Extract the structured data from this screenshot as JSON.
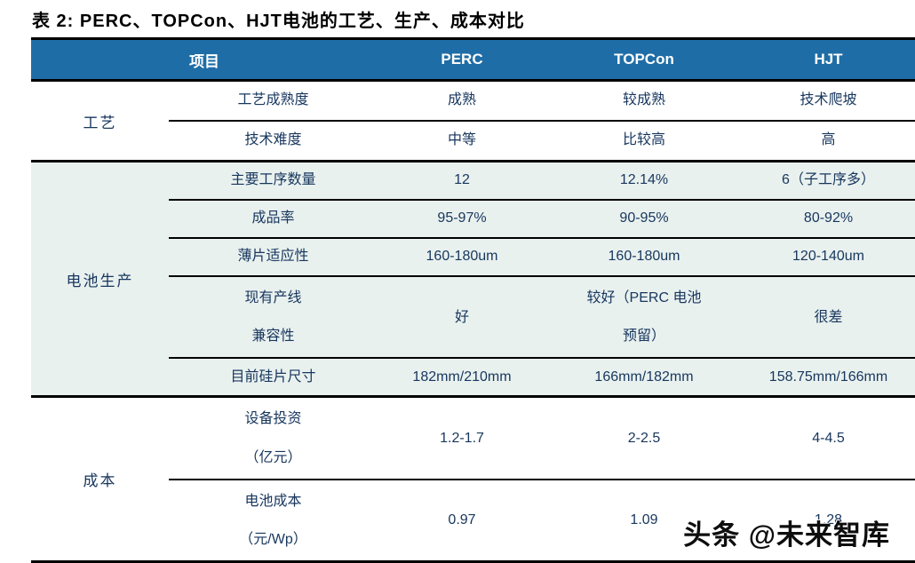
{
  "title": "表 2:  PERC、TOPCon、HJT电池的工艺、生产、成本对比",
  "header": {
    "item_label": "项目",
    "columns": [
      "PERC",
      "TOPCon",
      "HJT"
    ]
  },
  "sections": [
    {
      "name": "工艺",
      "rows": [
        {
          "label": "工艺成熟度",
          "values": [
            "成熟",
            "较成熟",
            "技术爬坡"
          ]
        },
        {
          "label": "技术难度",
          "values": [
            "中等",
            "比较高",
            "高"
          ]
        }
      ]
    },
    {
      "name": "电池生产",
      "rows": [
        {
          "label": "主要工序数量",
          "values": [
            "12",
            "12.14%",
            "6（子工序多）"
          ]
        },
        {
          "label": "成品率",
          "values": [
            "95-97%",
            "90-95%",
            "80-92%"
          ]
        },
        {
          "label": "薄片适应性",
          "values": [
            "160-180um",
            "160-180um",
            "120-140um"
          ]
        },
        {
          "label": "现有产线\n兼容性",
          "values": [
            "好",
            "较好（PERC 电池\n预留）",
            "很差"
          ]
        },
        {
          "label": "目前硅片尺寸",
          "values": [
            "182mm/210mm",
            "166mm/182mm",
            "158.75mm/166mm"
          ]
        }
      ]
    },
    {
      "name": "成本",
      "rows": [
        {
          "label": "设备投资\n（亿元）",
          "values": [
            "1.2-1.7",
            "2-2.5",
            "4-4.5"
          ]
        },
        {
          "label": "电池成本\n（元/Wp）",
          "values": [
            "0.97",
            "1.09",
            "1.28"
          ]
        }
      ]
    }
  ],
  "watermark": "头条 @未来智库",
  "colors": {
    "header_bg": "#1F6DA6",
    "header_text": "#FFFFFF",
    "production_section_bg": "#E9F1EF",
    "body_text": "#17365D",
    "rule": "#000000"
  }
}
